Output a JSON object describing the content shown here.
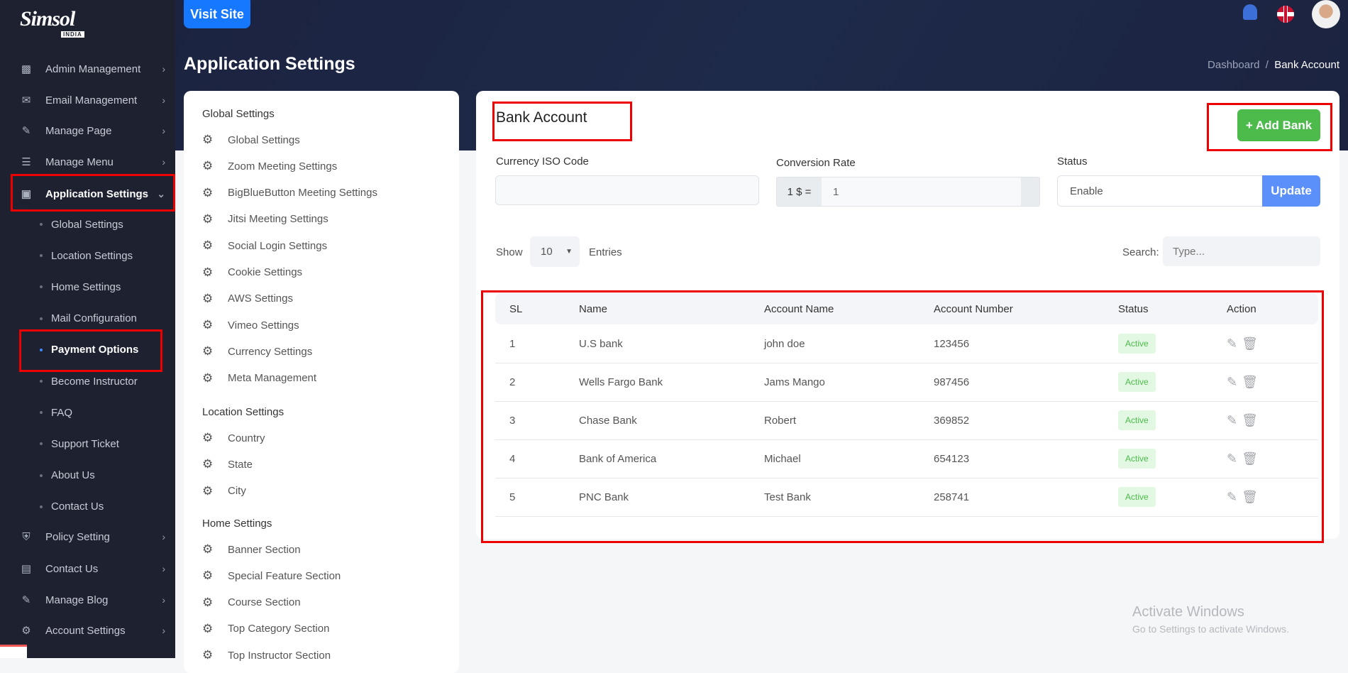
{
  "logo": {
    "text": "Simsol",
    "sub": "INDIA"
  },
  "sidebar": {
    "items": [
      {
        "label": "Admin Management",
        "icon": "admin-icon"
      },
      {
        "label": "Email Management",
        "icon": "envelope-icon"
      },
      {
        "label": "Manage Page",
        "icon": "edit-page-icon"
      },
      {
        "label": "Manage Menu",
        "icon": "menu-icon"
      },
      {
        "label": "Application Settings",
        "icon": "app-settings-icon"
      }
    ],
    "submenu": [
      "Global Settings",
      "Location Settings",
      "Home Settings",
      "Mail Configuration",
      "Payment Options",
      "Become Instructor",
      "FAQ",
      "Support Ticket",
      "About Us",
      "Contact Us"
    ],
    "items_after": [
      {
        "label": "Policy Setting",
        "icon": "shield-icon"
      },
      {
        "label": "Contact Us",
        "icon": "contact-card-icon"
      },
      {
        "label": "Manage Blog",
        "icon": "blog-icon"
      },
      {
        "label": "Account Settings",
        "icon": "gear-icon"
      }
    ]
  },
  "header": {
    "visit_site": "Visit Site",
    "title": "Application Settings",
    "breadcrumb": [
      "Dashboard",
      "Bank Account"
    ]
  },
  "settings_menu": {
    "global_title": "Global Settings",
    "global": [
      "Global Settings",
      "Zoom Meeting Settings",
      "BigBlueButton Meeting Settings",
      "Jitsi Meeting Settings",
      "Social Login Settings",
      "Cookie Settings",
      "AWS Settings",
      "Vimeo Settings",
      "Currency Settings",
      "Meta Management"
    ],
    "location_title": "Location Settings",
    "location": [
      "Country",
      "State",
      "City"
    ],
    "home_title": "Home Settings",
    "home": [
      "Banner Section",
      "Special Feature Section",
      "Course Section",
      "Top Category Section",
      "Top Instructor Section"
    ]
  },
  "main": {
    "title": "Bank Account",
    "add_button": "+ Add Bank",
    "currency_label": "Currency ISO Code",
    "currency_value": "",
    "conversion_label": "Conversion Rate",
    "conversion_prefix": "1 $ =",
    "conversion_value": "1",
    "status_label": "Status",
    "status_value": "Enable",
    "update_button": "Update",
    "show_label": "Show",
    "entries_value": "10",
    "entries_label": "Entries",
    "search_label": "Search:",
    "search_placeholder": "Type..."
  },
  "table": {
    "columns": [
      "SL",
      "Name",
      "Account Name",
      "Account Number",
      "Status",
      "Action"
    ],
    "rows": [
      [
        "1",
        "U.S bank",
        "john doe",
        "123456",
        "Active"
      ],
      [
        "2",
        "Wells Fargo Bank",
        "Jams Mango",
        "987456",
        "Active"
      ],
      [
        "3",
        "Chase Bank",
        "Robert",
        "369852",
        "Active"
      ],
      [
        "4",
        "Bank of America",
        "Michael",
        "654123",
        "Active"
      ],
      [
        "5",
        "PNC Bank",
        "Test Bank",
        "258741",
        "Active"
      ]
    ]
  },
  "watermark": {
    "title": "Activate Windows",
    "sub": "Go to Settings to activate Windows."
  },
  "colors": {
    "sidebar": "#1d2130",
    "primary": "#1677ff",
    "success": "#4cbb4c",
    "update": "#5b8ff9",
    "highlight": "#e00000"
  }
}
